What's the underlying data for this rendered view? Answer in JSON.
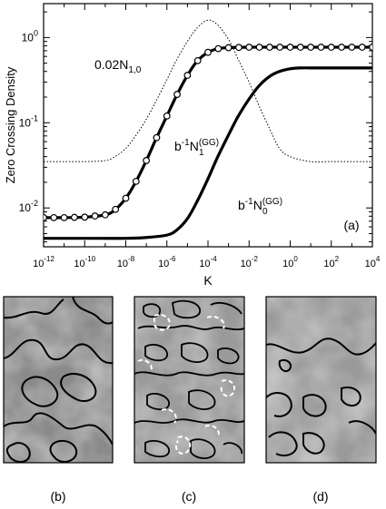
{
  "chart_data": [
    {
      "type": "line",
      "panel_label": "(a)",
      "xlabel": "K",
      "ylabel": "Zero Crossing Density",
      "x_scale": "log",
      "y_scale": "log",
      "xlim": [
        1e-12,
        10000.0
      ],
      "ylim": [
        0.0035,
        2.5
      ],
      "x_ticks": [
        {
          "value": 1e-12,
          "base": "10",
          "exp": "-12"
        },
        {
          "value": 1e-10,
          "base": "10",
          "exp": "-10"
        },
        {
          "value": 1e-08,
          "base": "10",
          "exp": "-8"
        },
        {
          "value": 1e-06,
          "base": "10",
          "exp": "-6"
        },
        {
          "value": 0.0001,
          "base": "10",
          "exp": "-4"
        },
        {
          "value": 0.01,
          "base": "10",
          "exp": "-2"
        },
        {
          "value": 1,
          "base": "10",
          "exp": "0"
        },
        {
          "value": 100.0,
          "base": "10",
          "exp": "2"
        },
        {
          "value": 10000.0,
          "base": "10",
          "exp": "4"
        }
      ],
      "y_ticks": [
        {
          "value": 0.01,
          "base": "10",
          "exp": "-2"
        },
        {
          "value": 0.1,
          "base": "10",
          "exp": "-1"
        },
        {
          "value": 1,
          "base": "10",
          "exp": "0"
        }
      ],
      "series": [
        {
          "label_main": "0.02N",
          "label_sub": "1,0",
          "label_sup": "",
          "style": "dotted",
          "x": [
            1e-12,
            1e-11,
            1e-10,
            1e-09,
            3e-09,
            1e-08,
            3e-08,
            1e-07,
            3e-07,
            1e-06,
            3e-06,
            1e-05,
            3e-05,
            0.0001,
            0.0003,
            0.001,
            0.003,
            0.01,
            0.03,
            0.1,
            0.3,
            1,
            10,
            100,
            1000.0,
            10000.0
          ],
          "y": [
            0.035,
            0.035,
            0.035,
            0.036,
            0.04,
            0.05,
            0.07,
            0.11,
            0.18,
            0.32,
            0.55,
            0.9,
            1.3,
            1.6,
            1.4,
            0.95,
            0.55,
            0.3,
            0.16,
            0.085,
            0.05,
            0.04,
            0.035,
            0.035,
            0.035,
            0.035
          ]
        },
        {
          "label_main": "b",
          "label_sub": "1",
          "label_sup": "(GG)",
          "label_prefix_sup": "-1",
          "label_mid": "N",
          "style": "thick-with-circles",
          "x": [
            1e-12,
            1e-11,
            1e-10,
            1e-09,
            3e-09,
            1e-08,
            3e-08,
            1e-07,
            3e-07,
            1e-06,
            3e-06,
            1e-05,
            3e-05,
            0.0001,
            0.0003,
            0.001,
            0.01,
            0.1,
            1,
            10,
            100,
            1000.0,
            10000.0
          ],
          "y": [
            0.0077,
            0.0077,
            0.0078,
            0.0083,
            0.0095,
            0.013,
            0.02,
            0.036,
            0.065,
            0.12,
            0.21,
            0.36,
            0.53,
            0.67,
            0.74,
            0.76,
            0.77,
            0.77,
            0.77,
            0.77,
            0.77,
            0.77,
            0.77
          ]
        },
        {
          "label_main": "b",
          "label_sub": "0",
          "label_sup": "(GG)",
          "label_prefix_sup": "-1",
          "label_mid": "N",
          "style": "thick",
          "x": [
            1e-12,
            1e-10,
            1e-08,
            1e-07,
            1e-06,
            3e-06,
            1e-05,
            3e-05,
            0.0001,
            0.0003,
            0.001,
            0.003,
            0.01,
            0.03,
            0.1,
            0.3,
            1,
            3,
            10,
            100,
            1000.0,
            10000.0
          ],
          "y": [
            0.0044,
            0.0044,
            0.0044,
            0.0045,
            0.0048,
            0.0055,
            0.0075,
            0.012,
            0.022,
            0.04,
            0.072,
            0.12,
            0.19,
            0.27,
            0.35,
            0.4,
            0.43,
            0.44,
            0.44,
            0.44,
            0.44,
            0.44
          ]
        }
      ]
    },
    {
      "type": "heatmap",
      "panel_label": "(b)"
    },
    {
      "type": "heatmap",
      "panel_label": "(c)"
    },
    {
      "type": "heatmap",
      "panel_label": "(d)"
    }
  ]
}
